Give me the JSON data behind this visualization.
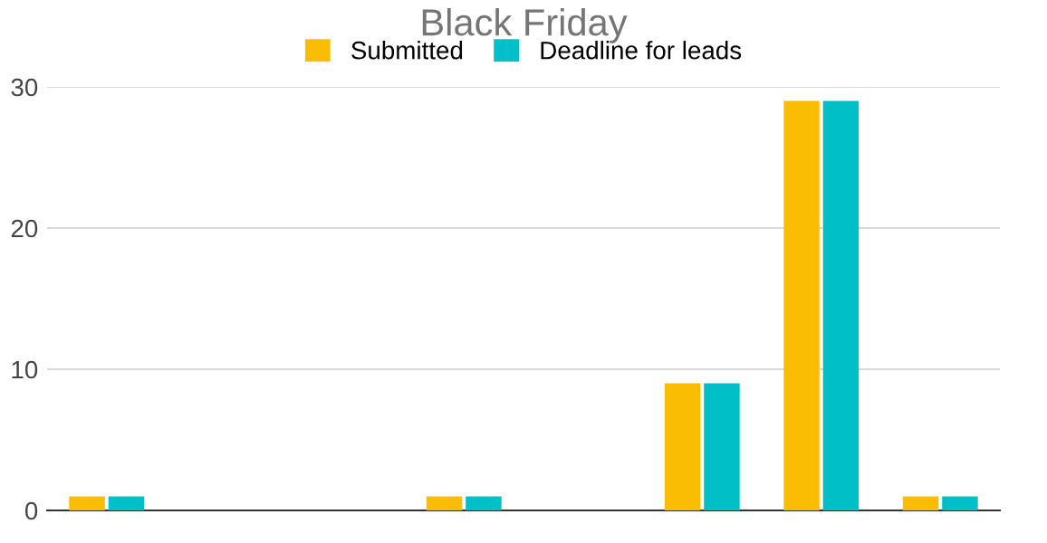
{
  "chart_data": {
    "type": "bar",
    "title": "Black Friday",
    "categories": [
      null,
      null,
      null,
      null,
      null,
      null,
      null,
      null
    ],
    "series": [
      {
        "name": "Submitted",
        "color": "#fbbc04",
        "values": [
          1,
          0,
          0,
          1,
          0,
          9,
          29,
          1
        ]
      },
      {
        "name": "Deadline for leads",
        "color": "#00bfc6",
        "values": [
          1,
          0,
          0,
          1,
          0,
          9,
          29,
          1
        ]
      }
    ],
    "ylim": [
      0,
      30
    ],
    "yticks": [
      0,
      10,
      20,
      30
    ],
    "grid": "y",
    "legend": "top",
    "tick_labels": "y"
  }
}
